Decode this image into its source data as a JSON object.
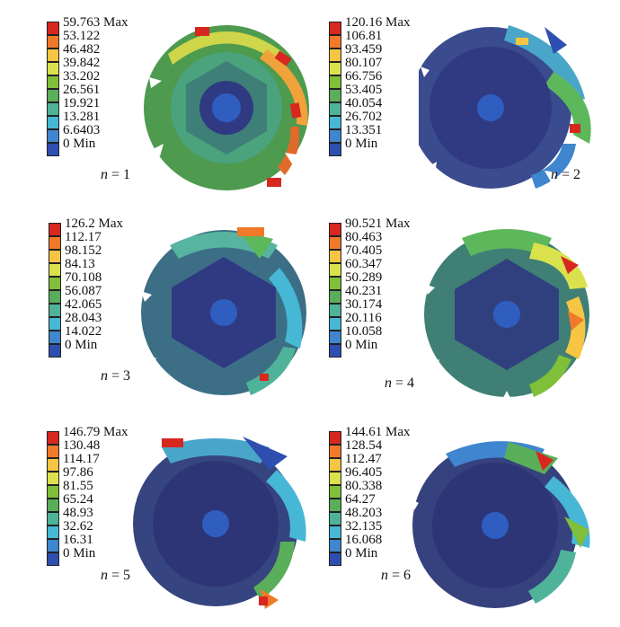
{
  "legend_colors": [
    "#d7271f",
    "#f07a2a",
    "#f5c543",
    "#d9e24d",
    "#7fbf3a",
    "#5aae5a",
    "#4fb39a",
    "#47b7d6",
    "#3f86cf",
    "#2e4fb0"
  ],
  "panels": [
    {
      "n_var": "n",
      "n_eq": " = 1",
      "legend": [
        "59.763 Max",
        "53.122",
        "46.482",
        "39.842",
        "33.202",
        "26.561",
        "19.921",
        "13.281",
        "6.6403",
        "0 Min"
      ],
      "body_color": "#4e9a4e",
      "inner_color": "#3e7f78"
    },
    {
      "n_var": "n",
      "n_eq": " = 2",
      "legend": [
        "120.16 Max",
        "106.81",
        "93.459",
        "80.107",
        "66.756",
        "53.405",
        "40.054",
        "26.702",
        "13.351",
        "0 Min"
      ],
      "body_color": "#3a4b8e",
      "inner_color": "#2f3a82"
    },
    {
      "n_var": "n",
      "n_eq": " = 3",
      "legend": [
        "126.2 Max",
        "112.17",
        "98.152",
        "84.13",
        "70.108",
        "56.087",
        "42.065",
        "28.043",
        "14.022",
        "0 Min"
      ],
      "body_color": "#3c6f86",
      "inner_color": "#2f3a82"
    },
    {
      "n_var": "n",
      "n_eq": " = 4",
      "legend": [
        "90.521 Max",
        "80.463",
        "70.405",
        "60.347",
        "50.289",
        "40.231",
        "30.174",
        "20.116",
        "10.058",
        "0 Min"
      ],
      "body_color": "#3f7f76",
      "inner_color": "#30407f"
    },
    {
      "n_var": "n",
      "n_eq": " = 5",
      "legend": [
        "146.79 Max",
        "130.48",
        "114.17",
        "97.86",
        "81.55",
        "65.24",
        "48.93",
        "32.62",
        "16.31",
        "0 Min"
      ],
      "body_color": "#36447f",
      "inner_color": "#2d3577"
    },
    {
      "n_var": "n",
      "n_eq": " = 6",
      "legend": [
        "144.61 Max",
        "128.54",
        "112.47",
        "96.405",
        "80.338",
        "64.27",
        "48.203",
        "32.135",
        "16.068",
        "0 Min"
      ],
      "body_color": "#35427d",
      "inner_color": "#2d3577"
    }
  ]
}
